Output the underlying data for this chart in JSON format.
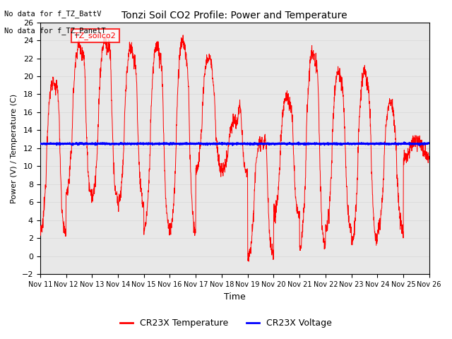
{
  "title": "Tonzi Soil CO2 Profile: Power and Temperature",
  "xlabel": "Time",
  "ylabel": "Power (V) / Temperature (C)",
  "ylim": [
    -2,
    26
  ],
  "yticks": [
    -2,
    0,
    2,
    4,
    6,
    8,
    10,
    12,
    14,
    16,
    18,
    20,
    22,
    24,
    26
  ],
  "x_labels": [
    "Nov 11",
    "Nov 12",
    "Nov 13",
    "Nov 14",
    "Nov 15",
    "Nov 16",
    "Nov 17",
    "Nov 18",
    "Nov 19",
    "Nov 20",
    "Nov 21",
    "Nov 22",
    "Nov 23",
    "Nov 24",
    "Nov 25",
    "Nov 26"
  ],
  "note1": "No data for f_TZ_BattV",
  "note2": "No data for f_TZ_PanelT",
  "legend_label1": "TZ_soilco2",
  "legend_label2": "CR23X Temperature",
  "legend_label3": "CR23X Voltage",
  "temp_color": "#ff0000",
  "voltage_color": "#0000ff",
  "voltage_value": 12.5,
  "background_color": "#ffffff",
  "grid_color": "#d8d8d8",
  "plot_bg_color": "#e8e8e8"
}
